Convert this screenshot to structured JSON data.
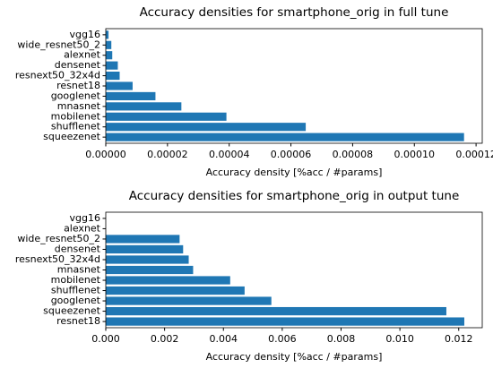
{
  "chart_data": [
    {
      "type": "barh",
      "title": "Accuracy densities for smartphone_orig in full tune",
      "x_label": "Accuracy density [%acc / #params]",
      "color": "#1f77b4",
      "categories": [
        "vgg16",
        "wide_resnet50_2",
        "alexnet",
        "densenet",
        "resnext50_32x4d",
        "resnet18",
        "googlenet",
        "mnasnet",
        "mobilenet",
        "shufflenet",
        "squeezenet"
      ],
      "values": [
        9e-07,
        1.8e-06,
        2.1e-06,
        3.9e-06,
        4.5e-06,
        8.7e-06,
        1.61e-05,
        2.45e-05,
        3.91e-05,
        6.48e-05,
        0.0001161
      ],
      "xlim": [
        0,
        0.000122
      ],
      "xticks": [
        {
          "value": 0,
          "label": "0.00000"
        },
        {
          "value": 2e-05,
          "label": "0.00002"
        },
        {
          "value": 4e-05,
          "label": "0.00004"
        },
        {
          "value": 6e-05,
          "label": "0.00006"
        },
        {
          "value": 8e-05,
          "label": "0.00008"
        },
        {
          "value": 0.0001,
          "label": "0.00010"
        },
        {
          "value": 0.00012,
          "label": "0.00012"
        }
      ]
    },
    {
      "type": "barh",
      "title": "Accuracy densities for smartphone_orig in output tune",
      "x_label": "Accuracy density [%acc / #params]",
      "color": "#1f77b4",
      "categories": [
        "vgg16",
        "alexnet",
        "wide_resnet50_2",
        "densenet",
        "resnext50_32x4d",
        "mnasnet",
        "mobilenet",
        "shufflenet",
        "googlenet",
        "squeezenet",
        "resnet18"
      ],
      "values": [
        0,
        0,
        0.00251,
        0.00263,
        0.00282,
        0.00297,
        0.00423,
        0.00472,
        0.00563,
        0.01158,
        0.01219
      ],
      "xlim": [
        0,
        0.0128
      ],
      "xticks": [
        {
          "value": 0,
          "label": "0.000"
        },
        {
          "value": 0.002,
          "label": "0.002"
        },
        {
          "value": 0.004,
          "label": "0.004"
        },
        {
          "value": 0.006,
          "label": "0.006"
        },
        {
          "value": 0.008,
          "label": "0.008"
        },
        {
          "value": 0.01,
          "label": "0.010"
        },
        {
          "value": 0.012,
          "label": "0.012"
        }
      ]
    }
  ]
}
